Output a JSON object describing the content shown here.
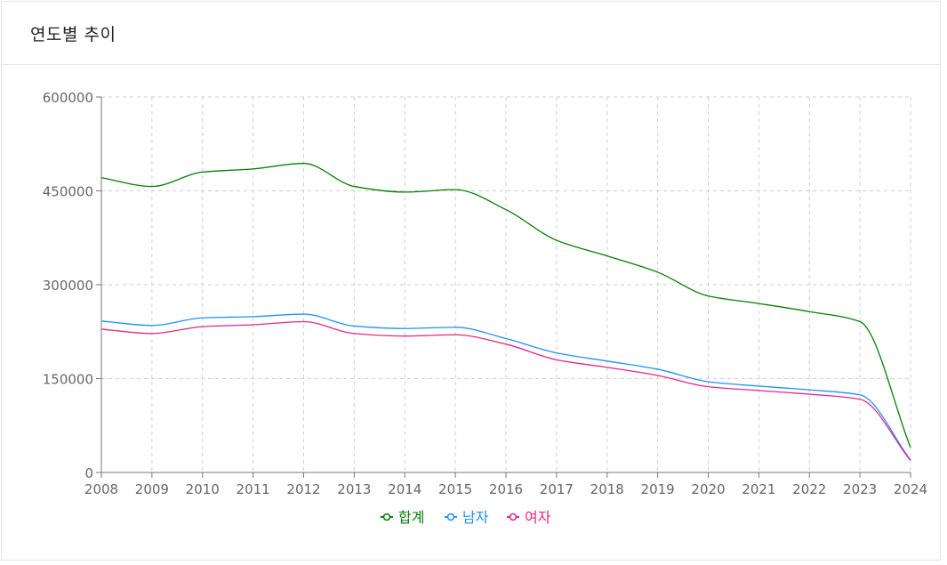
{
  "header": {
    "title": "연도별 추이"
  },
  "chart_data": {
    "type": "line",
    "title": "",
    "xlabel": "",
    "ylabel": "",
    "x": [
      "2008",
      "2009",
      "2010",
      "2011",
      "2012",
      "2013",
      "2014",
      "2015",
      "2016",
      "2017",
      "2018",
      "2019",
      "2020",
      "2021",
      "2022",
      "2023",
      "2024"
    ],
    "ylim": [
      0,
      600000
    ],
    "yticks": [
      0,
      150000,
      300000,
      450000,
      600000
    ],
    "ytick_labels": [
      "0",
      "150000",
      "300000",
      "450000",
      "600000"
    ],
    "grid": true,
    "legend_position": "bottom",
    "series": [
      {
        "name": "합계",
        "color": "#008000",
        "values": [
          471000,
          457000,
          480000,
          485000,
          494000,
          457000,
          448000,
          452000,
          420000,
          371000,
          346000,
          320000,
          282000,
          270000,
          257000,
          241000,
          40000
        ]
      },
      {
        "name": "남자",
        "color": "#1e90ff",
        "values": [
          242000,
          235000,
          247000,
          249000,
          253000,
          234000,
          230000,
          232000,
          214000,
          191000,
          178000,
          165000,
          145000,
          138000,
          132000,
          124000,
          20000
        ]
      },
      {
        "name": "여자",
        "color": "#e2278a",
        "values": [
          229000,
          222000,
          233000,
          236000,
          241000,
          222000,
          218000,
          220000,
          205000,
          180000,
          168000,
          155000,
          137000,
          131000,
          125000,
          117000,
          19000
        ]
      }
    ]
  }
}
